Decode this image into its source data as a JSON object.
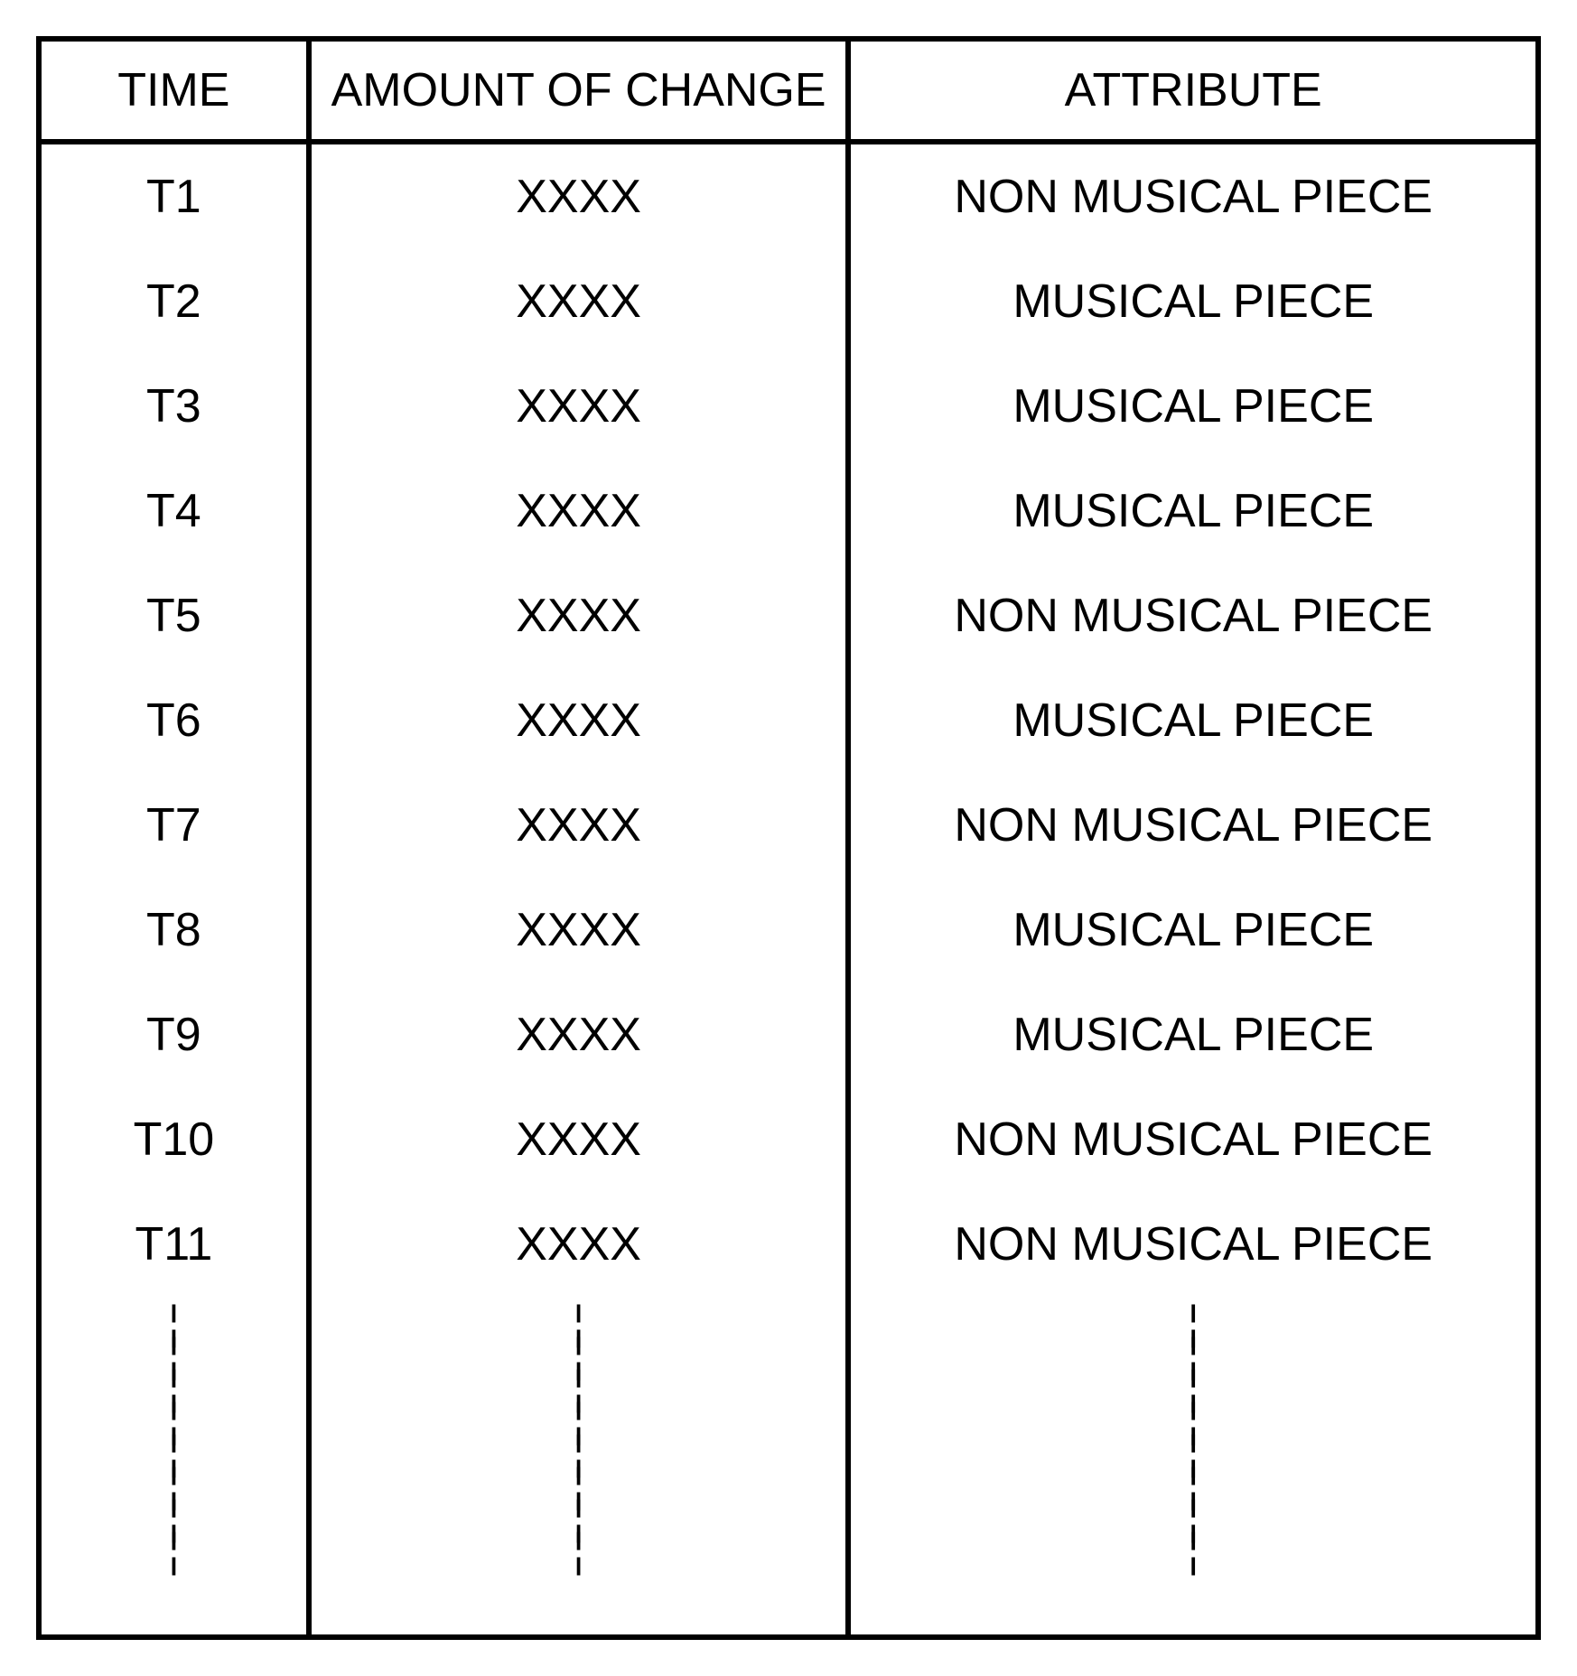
{
  "table": {
    "columns": [
      "TIME",
      "AMOUNT OF CHANGE",
      "ATTRIBUTE"
    ],
    "rows": [
      {
        "time": "T1",
        "amount": "XXXX",
        "attribute": "NON MUSICAL PIECE"
      },
      {
        "time": "T2",
        "amount": "XXXX",
        "attribute": "MUSICAL PIECE"
      },
      {
        "time": "T3",
        "amount": "XXXX",
        "attribute": "MUSICAL PIECE"
      },
      {
        "time": "T4",
        "amount": "XXXX",
        "attribute": "MUSICAL PIECE"
      },
      {
        "time": "T5",
        "amount": "XXXX",
        "attribute": "NON MUSICAL PIECE"
      },
      {
        "time": "T6",
        "amount": "XXXX",
        "attribute": "MUSICAL PIECE"
      },
      {
        "time": "T7",
        "amount": "XXXX",
        "attribute": "NON MUSICAL PIECE"
      },
      {
        "time": "T8",
        "amount": "XXXX",
        "attribute": "MUSICAL PIECE"
      },
      {
        "time": "T9",
        "amount": "XXXX",
        "attribute": "MUSICAL PIECE"
      },
      {
        "time": "T10",
        "amount": "XXXX",
        "attribute": "NON MUSICAL PIECE"
      },
      {
        "time": "T11",
        "amount": "XXXX",
        "attribute": "NON MUSICAL PIECE"
      }
    ],
    "styling": {
      "border_color": "#000000",
      "border_width": 6,
      "background_color": "#ffffff",
      "text_color": "#000000",
      "header_fontsize": 52,
      "cell_fontsize": 52,
      "font_family": "Arial, Helvetica, sans-serif",
      "col_widths_pct": [
        18,
        36,
        46
      ],
      "ellipsis_dash_count": 8
    }
  }
}
